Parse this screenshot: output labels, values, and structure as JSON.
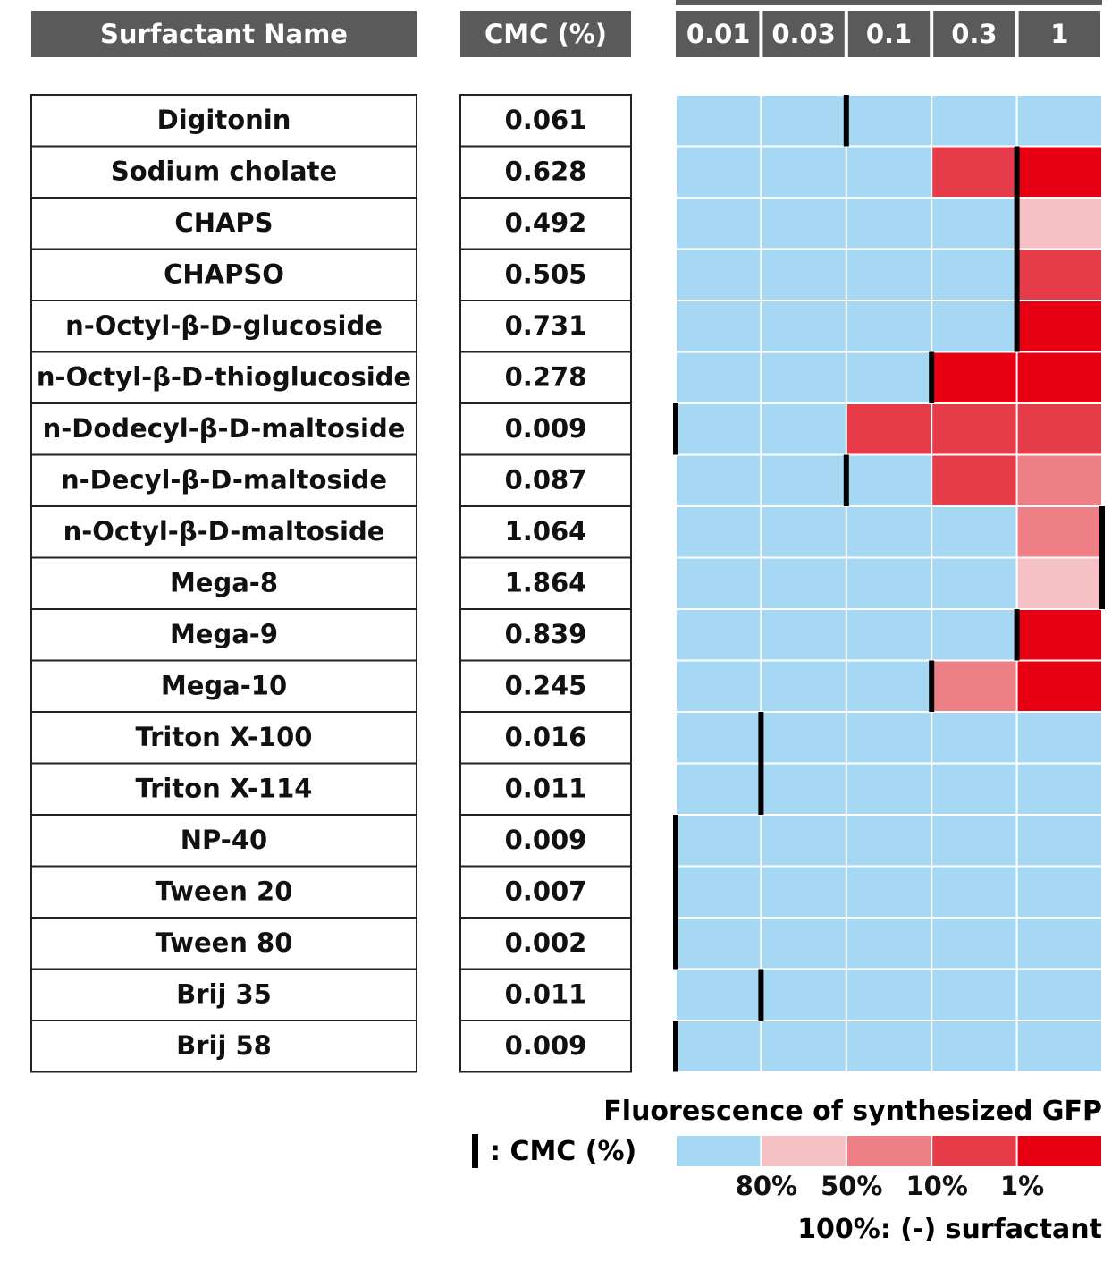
{
  "headers": {
    "name": "Surfactant Name",
    "cmc": "CMC (%)",
    "concentrations": [
      "0.01",
      "0.03",
      "0.1",
      "0.3",
      "1"
    ]
  },
  "legend": {
    "cmc_marker_label": ": CMC (%)",
    "gfp_title": "Fluorescence of synthesized GFP",
    "scale_labels": [
      "80%",
      "50%",
      "10%",
      "1%"
    ],
    "baseline_note": "100%: (-) surfactant",
    "level_colors": [
      "#a6d8f4",
      "#f5c1c5",
      "#ef7f87",
      "#e63c4a",
      "#e60012"
    ]
  },
  "colors": {
    "header_bg": "#5a5a5a",
    "header_text": "#ffffff",
    "cmc_marker": "#000000"
  },
  "chart_data": {
    "type": "heatmap",
    "title": "Fluorescence of synthesized GFP",
    "x": [
      "0.01",
      "0.03",
      "0.1",
      "0.3",
      "1"
    ],
    "y": [
      "Digitonin",
      "Sodium cholate",
      "CHAPS",
      "CHAPSO",
      "n-Octyl-β-D-glucoside",
      "n-Octyl-β-D-thioglucoside",
      "n-Dodecyl-β-D-maltoside",
      "n-Decyl-β-D-maltoside",
      "n-Octyl-β-D-maltoside",
      "Mega-8",
      "Mega-9",
      "Mega-10",
      "Triton X-100",
      "Triton X-114",
      "NP-40",
      "Tween 20",
      "Tween 80",
      "Brij 35",
      "Brij 58"
    ],
    "cmc": [
      "0.061",
      "0.628",
      "0.492",
      "0.505",
      "0.731",
      "0.278",
      "0.009",
      "0.087",
      "1.064",
      "1.864",
      "0.839",
      "0.245",
      "0.016",
      "0.011",
      "0.009",
      "0.007",
      "0.002",
      "0.011",
      "0.009"
    ],
    "level_legend": [
      "100%",
      "80%",
      "50%",
      "10%",
      "1%"
    ],
    "levels": [
      [
        0,
        0,
        0,
        0,
        0
      ],
      [
        0,
        0,
        0,
        3,
        4
      ],
      [
        0,
        0,
        0,
        0,
        1
      ],
      [
        0,
        0,
        0,
        0,
        3
      ],
      [
        0,
        0,
        0,
        0,
        4
      ],
      [
        0,
        0,
        0,
        4,
        4
      ],
      [
        0,
        0,
        3,
        3,
        3
      ],
      [
        0,
        0,
        0,
        3,
        2
      ],
      [
        0,
        0,
        0,
        0,
        2
      ],
      [
        0,
        0,
        0,
        0,
        1
      ],
      [
        0,
        0,
        0,
        0,
        4
      ],
      [
        0,
        0,
        0,
        2,
        4
      ],
      [
        0,
        0,
        0,
        0,
        0
      ],
      [
        0,
        0,
        0,
        0,
        0
      ],
      [
        0,
        0,
        0,
        0,
        0
      ],
      [
        0,
        0,
        0,
        0,
        0
      ],
      [
        0,
        0,
        0,
        0,
        0
      ],
      [
        0,
        0,
        0,
        0,
        0
      ],
      [
        0,
        0,
        0,
        0,
        0
      ]
    ],
    "cmc_marker_after_column": [
      2,
      4,
      4,
      4,
      4,
      3,
      0,
      2,
      5,
      5,
      4,
      3,
      1,
      1,
      0,
      0,
      0,
      1,
      0
    ]
  }
}
